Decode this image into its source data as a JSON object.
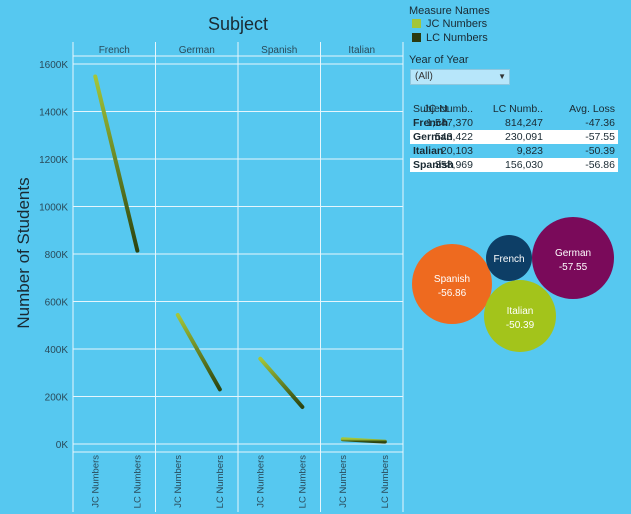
{
  "sheet_title": "Subject",
  "y_axis_label": "Number of Students",
  "legend": {
    "title": "Measure Names",
    "items": [
      {
        "label": "JC Numbers",
        "color": "#a4c639"
      },
      {
        "label": "LC Numbers",
        "color": "#2b3a10"
      }
    ]
  },
  "filter": {
    "title": "Year of Year",
    "value": "(All)"
  },
  "table": {
    "headers": [
      "Subject",
      "JC Numb..",
      "LC Numb..",
      "Avg. Loss"
    ],
    "rows": [
      [
        "French",
        "1,547,370",
        "814,247",
        "-47.36"
      ],
      [
        "German",
        "543,422",
        "230,091",
        "-57.55"
      ],
      [
        "Italian",
        "20,103",
        "9,823",
        "-50.39"
      ],
      [
        "Spanish",
        "358,969",
        "156,030",
        "-56.86"
      ]
    ]
  },
  "chart_data": [
    {
      "type": "line",
      "title": "Subject",
      "ylabel": "Number of Students",
      "ylim": [
        0,
        1700000
      ],
      "y_ticks": [
        0,
        200000,
        400000,
        600000,
        800000,
        1000000,
        1200000,
        1400000,
        1600000
      ],
      "y_tick_labels": [
        "0K",
        "200K",
        "400K",
        "600K",
        "800K",
        "1000K",
        "1200K",
        "1400K",
        "1600K"
      ],
      "panels": [
        "French",
        "German",
        "Spanish",
        "Italian"
      ],
      "categories": [
        "JC Numbers",
        "LC Numbers"
      ],
      "series": [
        {
          "panel": "French",
          "values": [
            1547370,
            814247
          ]
        },
        {
          "panel": "German",
          "values": [
            543422,
            230091
          ]
        },
        {
          "panel": "Spanish",
          "values": [
            358969,
            156030
          ]
        },
        {
          "panel": "Italian",
          "values": [
            20103,
            9823
          ]
        }
      ],
      "grid": true
    },
    {
      "type": "bubble",
      "bubbles": [
        {
          "label": "Spanish",
          "value": "-56.86",
          "size": 56.86,
          "color": "#ee6a1f"
        },
        {
          "label": "French",
          "value": "",
          "size": 47.36,
          "color": "#0d3e66"
        },
        {
          "label": "Italian",
          "value": "-50.39",
          "size": 50.39,
          "color": "#a3c41b"
        },
        {
          "label": "German",
          "value": "-57.55",
          "size": 57.55,
          "color": "#7a0a5a"
        }
      ]
    }
  ]
}
